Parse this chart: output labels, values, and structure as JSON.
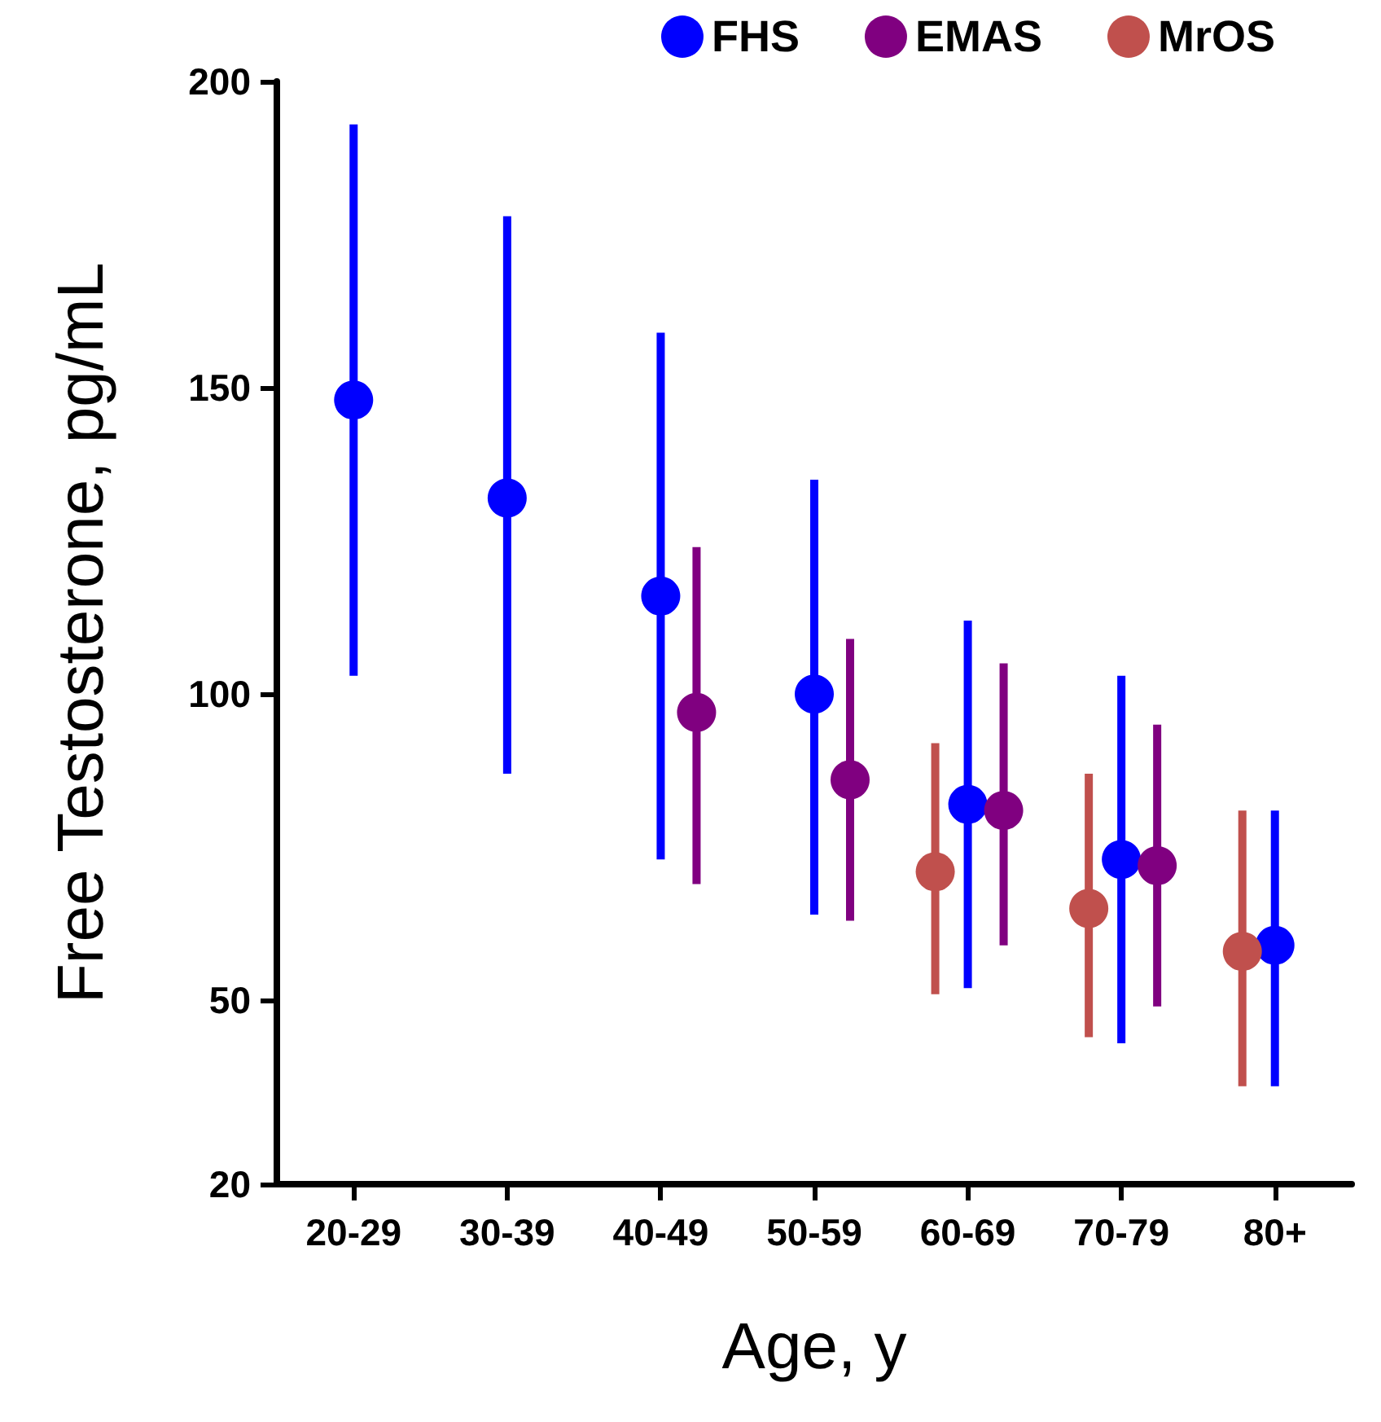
{
  "chart_data": {
    "type": "scatter",
    "xlabel": "Age, y",
    "ylabel": "Free Testosterone, pg/mL",
    "categories": [
      "20-29",
      "30-39",
      "40-49",
      "50-59",
      "60-69",
      "70-79",
      "80+"
    ],
    "series": [
      {
        "name": "FHS",
        "color": "#0000ff",
        "values": [
          148,
          132,
          116,
          100,
          82,
          73,
          59
        ],
        "errors": [
          [
            103,
            193
          ],
          [
            87,
            178
          ],
          [
            73,
            159
          ],
          [
            64,
            135
          ],
          [
            52,
            112
          ],
          [
            43,
            103
          ],
          [
            36,
            81
          ]
        ]
      },
      {
        "name": "EMAS",
        "color": "#800080",
        "values": [
          null,
          null,
          97,
          86,
          81,
          72,
          null
        ],
        "errors": [
          null,
          null,
          [
            69,
            124
          ],
          [
            63,
            109
          ],
          [
            59,
            105
          ],
          [
            49,
            95
          ],
          null
        ]
      },
      {
        "name": "MrOS",
        "color": "#c0504d",
        "values": [
          null,
          null,
          null,
          null,
          71,
          65,
          58
        ],
        "errors": [
          null,
          null,
          null,
          null,
          [
            51,
            92
          ],
          [
            44,
            87
          ],
          [
            36,
            81
          ]
        ]
      }
    ],
    "ylim": [
      20,
      200
    ],
    "yticks": [
      20,
      50,
      100,
      150,
      200
    ],
    "grid": false,
    "legend": "top right",
    "marker": "circle"
  }
}
